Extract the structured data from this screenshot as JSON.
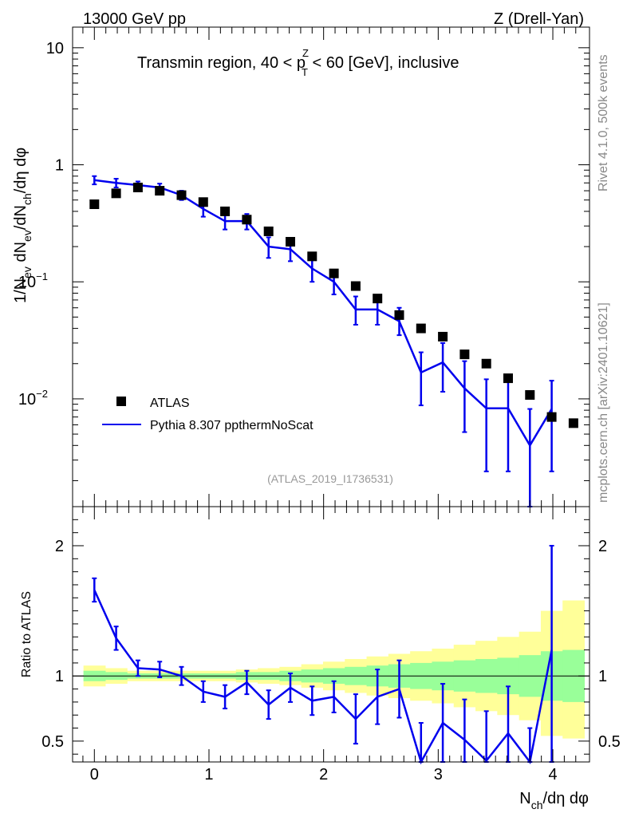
{
  "header": {
    "left_label": "13000 GeV pp",
    "right_label": "Z (Drell-Yan)"
  },
  "side_labels": {
    "rivet": "Rivet 4.1.0,  500k events",
    "mcplots": "mcplots.cern.ch [arXiv:2401.10621]"
  },
  "chart_data": [
    {
      "type": "scatter",
      "panel": "main",
      "title": "Transmin region, 40 < p_T^Z < 60 [GeV], inclusive",
      "title_parts": {
        "prefix": "Transmin region, 40 < p",
        "sup": "Z",
        "sub": "T",
        "suffix": " < 60 [GeV], inclusive"
      },
      "ylabel": "1/N_ev dN_ev/dN_ch/dη dφ",
      "ylabel_parts": {
        "a": "1/N",
        "a_sub": "ev",
        "b": " dN",
        "b_sub": "ev",
        "c": "/dN",
        "c_sub": "ch",
        "d": "/dη dφ"
      },
      "yscale": "log",
      "ylim": [
        0.0012,
        15
      ],
      "xlim": [
        -0.19,
        4.32
      ],
      "yticks": [
        {
          "label": "10",
          "value": 10
        },
        {
          "label": "1",
          "value": 1
        },
        {
          "label": "10",
          "exp": "−1",
          "value": 0.1
        },
        {
          "label": "10",
          "exp": "−2",
          "value": 0.01
        }
      ],
      "watermark": "(ATLAS_2019_I1736531)",
      "series": [
        {
          "name": "ATLAS",
          "style": "markers",
          "color": "#000000",
          "x": [
            0.0,
            0.19,
            0.38,
            0.57,
            0.76,
            0.95,
            1.14,
            1.33,
            1.52,
            1.71,
            1.9,
            2.09,
            2.28,
            2.47,
            2.66,
            2.85,
            3.04,
            3.23,
            3.42,
            3.61,
            3.8,
            3.99,
            4.18
          ],
          "y": [
            0.46,
            0.57,
            0.64,
            0.6,
            0.55,
            0.48,
            0.4,
            0.34,
            0.27,
            0.22,
            0.165,
            0.118,
            0.092,
            0.072,
            0.052,
            0.04,
            0.034,
            0.024,
            0.02,
            0.015,
            0.0108,
            0.007,
            0.0062
          ]
        },
        {
          "name": "Pythia 8.307 ppthermNoScat",
          "style": "line",
          "color": "#0000ee",
          "x": [
            0.0,
            0.19,
            0.38,
            0.57,
            0.76,
            0.95,
            1.14,
            1.33,
            1.52,
            1.71,
            1.9,
            2.09,
            2.28,
            2.47,
            2.66,
            2.85,
            3.04,
            3.23,
            3.42,
            3.61,
            3.8,
            3.99
          ],
          "y": [
            0.74,
            0.7,
            0.67,
            0.64,
            0.55,
            0.42,
            0.33,
            0.33,
            0.2,
            0.19,
            0.13,
            0.1,
            0.058,
            0.058,
            0.046,
            0.0168,
            0.0205,
            0.0123,
            0.0083,
            0.0083,
            0.004,
            0.0082
          ],
          "err_lo": [
            0.68,
            0.64,
            0.62,
            0.59,
            0.5,
            0.36,
            0.28,
            0.28,
            0.16,
            0.15,
            0.1,
            0.078,
            0.043,
            0.043,
            0.035,
            0.0088,
            0.0115,
            0.0052,
            0.0024,
            0.0024,
            0.0012,
            0.0024
          ],
          "err_hi": [
            0.8,
            0.76,
            0.72,
            0.69,
            0.6,
            0.48,
            0.38,
            0.38,
            0.24,
            0.23,
            0.16,
            0.12,
            0.075,
            0.075,
            0.06,
            0.025,
            0.03,
            0.021,
            0.0147,
            0.0147,
            0.0082,
            0.0143
          ]
        }
      ],
      "legend": {
        "position": "bottom-left",
        "entries": [
          "ATLAS",
          "Pythia 8.307 ppthermNoScat"
        ]
      }
    },
    {
      "type": "line",
      "panel": "ratio",
      "ylabel": "Ratio to ATLAS",
      "xlabel": "N_ch/dη dφ",
      "xlabel_parts": {
        "a": "N",
        "a_sub": "ch",
        "b": "/dη dφ"
      },
      "ylim": [
        0.34,
        2.3
      ],
      "xlim": [
        -0.19,
        4.32
      ],
      "xticks": [
        {
          "label": "0",
          "value": 0
        },
        {
          "label": "1",
          "value": 1
        },
        {
          "label": "2",
          "value": 2
        },
        {
          "label": "3",
          "value": 3
        },
        {
          "label": "4",
          "value": 4
        }
      ],
      "yticks": [
        {
          "label": "2",
          "value": 2
        },
        {
          "label": "1",
          "value": 1
        },
        {
          "label": "0.5",
          "value": 0.5
        }
      ],
      "reference_line": 1,
      "bands": {
        "bin_edges": [
          -0.095,
          0.095,
          0.285,
          0.475,
          0.665,
          0.855,
          1.045,
          1.235,
          1.425,
          1.615,
          1.805,
          1.995,
          2.185,
          2.375,
          2.565,
          2.755,
          2.945,
          3.135,
          3.325,
          3.515,
          3.705,
          3.895,
          4.085,
          4.275
        ],
        "green_lo": [
          0.96,
          0.97,
          0.98,
          0.98,
          0.98,
          0.98,
          0.98,
          0.97,
          0.97,
          0.96,
          0.95,
          0.94,
          0.93,
          0.92,
          0.91,
          0.9,
          0.89,
          0.88,
          0.87,
          0.86,
          0.84,
          0.81,
          0.8
        ],
        "green_hi": [
          1.04,
          1.03,
          1.02,
          1.02,
          1.02,
          1.02,
          1.02,
          1.03,
          1.03,
          1.04,
          1.05,
          1.06,
          1.07,
          1.08,
          1.09,
          1.1,
          1.11,
          1.12,
          1.13,
          1.14,
          1.16,
          1.19,
          1.2
        ],
        "yellow_lo": [
          0.92,
          0.94,
          0.96,
          0.96,
          0.96,
          0.96,
          0.96,
          0.95,
          0.94,
          0.93,
          0.91,
          0.89,
          0.87,
          0.85,
          0.83,
          0.81,
          0.79,
          0.76,
          0.73,
          0.7,
          0.66,
          0.54,
          0.52
        ],
        "yellow_hi": [
          1.08,
          1.06,
          1.04,
          1.04,
          1.04,
          1.04,
          1.04,
          1.05,
          1.06,
          1.07,
          1.09,
          1.11,
          1.13,
          1.15,
          1.17,
          1.19,
          1.21,
          1.24,
          1.27,
          1.3,
          1.34,
          1.5,
          1.58
        ],
        "green_color": "#99ff99",
        "yellow_color": "#ffff99"
      },
      "series": [
        {
          "name": "Pythia 8.307 ppthermNoScat / ATLAS",
          "color": "#0000ee",
          "x": [
            0.0,
            0.19,
            0.38,
            0.57,
            0.76,
            0.95,
            1.14,
            1.33,
            1.52,
            1.71,
            1.9,
            2.09,
            2.28,
            2.47,
            2.66,
            2.85,
            3.04,
            3.23,
            3.42,
            3.61,
            3.8,
            3.99
          ],
          "y": [
            1.66,
            1.29,
            1.06,
            1.05,
            1.0,
            0.88,
            0.84,
            0.95,
            0.78,
            0.91,
            0.81,
            0.84,
            0.67,
            0.84,
            0.9,
            0.3,
            0.64,
            0.51,
            0.35,
            0.56,
            0.3,
            1.2
          ],
          "err_lo": [
            1.57,
            1.2,
            1.0,
            0.99,
            0.93,
            0.8,
            0.75,
            0.86,
            0.67,
            0.8,
            0.7,
            0.72,
            0.48,
            0.63,
            0.68,
            0.2,
            0.34,
            0.2,
            0.1,
            0.2,
            0.1,
            0.34
          ],
          "err_hi": [
            1.75,
            1.38,
            1.12,
            1.11,
            1.07,
            0.96,
            0.93,
            1.04,
            0.89,
            1.02,
            0.92,
            0.96,
            0.86,
            1.05,
            1.12,
            0.64,
            0.94,
            0.82,
            0.73,
            0.92,
            0.6,
            2.0
          ]
        }
      ]
    }
  ]
}
